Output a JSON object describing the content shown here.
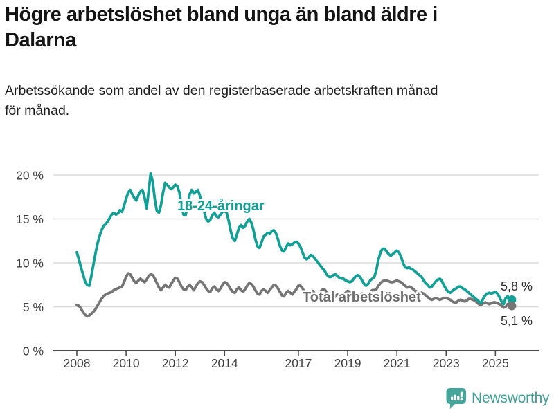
{
  "header": {
    "title_lines": [
      "Högre arbetslöshet bland unga än bland äldre i",
      "Dalarna"
    ],
    "subtitle_lines": [
      "Arbetssökande som andel av den registerbaserade arbetskraften månad",
      "för månad."
    ]
  },
  "footer": {
    "brand": "Newsworthy"
  },
  "colors": {
    "youth_line": "#12a096",
    "total_line": "#757575",
    "total_label": "#6d6d6d",
    "brand_teal": "#46a59b",
    "grid": "#dbdbdb",
    "axis": "#4b4b4b"
  },
  "chart_data": {
    "type": "line",
    "title": "Högre arbetslöshet bland unga än bland äldre i Dalarna",
    "subtitle": "Arbetssökande som andel av den registerbaserade arbetskraften månad för månad.",
    "unit": "%",
    "frequency": "monthly",
    "x_start": "2008-01",
    "x_end": "2025-09",
    "x_ticks": [
      2008,
      2010,
      2012,
      2014,
      2017,
      2019,
      2021,
      2023,
      2025
    ],
    "y_ticks": [
      0,
      5,
      10,
      15,
      20
    ],
    "y_tick_suffix": " %",
    "ylim": [
      0,
      21.7
    ],
    "grid": true,
    "legend": "inline-labels",
    "series": [
      {
        "name": "18-24-åringar",
        "color": "#12a096",
        "end_label": "5,8 %",
        "end_value": 5.8,
        "values": [
          11.2,
          10.4,
          9.5,
          8.7,
          7.9,
          7.5,
          7.4,
          8.4,
          9.7,
          11.0,
          12.1,
          13.0,
          13.7,
          14.2,
          14.4,
          14.7,
          15.1,
          15.5,
          15.7,
          15.5,
          15.6,
          16.0,
          15.8,
          16.5,
          17.3,
          18.0,
          18.3,
          17.8,
          17.4,
          17.1,
          17.7,
          18.1,
          18.3,
          17.4,
          16.2,
          18.2,
          20.2,
          19.2,
          17.2,
          15.9,
          15.7,
          16.6,
          18.0,
          19.1,
          18.9,
          18.6,
          18.4,
          18.6,
          18.9,
          18.7,
          18.0,
          16.5,
          15.5,
          15.4,
          16.5,
          17.8,
          18.3,
          17.9,
          18.1,
          18.3,
          17.6,
          17.0,
          15.9,
          15.0,
          14.7,
          14.9,
          15.4,
          15.7,
          15.3,
          15.2,
          15.5,
          15.8,
          15.9,
          15.7,
          14.8,
          13.6,
          12.8,
          12.5,
          13.2,
          14.0,
          14.3,
          14.0,
          14.2,
          14.7,
          15.0,
          14.6,
          13.8,
          12.7,
          11.9,
          11.7,
          12.3,
          13.0,
          13.2,
          13.4,
          13.3,
          13.6,
          13.7,
          13.4,
          12.7,
          11.9,
          11.4,
          11.3,
          11.8,
          12.2,
          12.0,
          12.1,
          12.3,
          12.4,
          12.2,
          11.8,
          11.2,
          10.6,
          10.4,
          10.6,
          10.9,
          10.8,
          10.5,
          10.2,
          9.9,
          9.6,
          9.3,
          9.0,
          8.6,
          8.4,
          8.4,
          8.6,
          8.7,
          8.5,
          8.3,
          8.2,
          8.2,
          8.0,
          7.9,
          7.8,
          7.9,
          8.2,
          8.5,
          8.6,
          8.4,
          8.0,
          7.6,
          7.4,
          7.6,
          8.0,
          8.2,
          8.4,
          9.2,
          10.4,
          11.2,
          11.6,
          11.6,
          11.3,
          11.0,
          10.8,
          11.0,
          11.2,
          11.4,
          11.2,
          10.7,
          10.0,
          9.5,
          9.4,
          9.5,
          9.3,
          9.2,
          9.0,
          8.8,
          8.6,
          8.4,
          8.0,
          7.7,
          7.5,
          7.2,
          7.3,
          7.6,
          7.9,
          8.1,
          8.2,
          7.9,
          7.4,
          7.0,
          6.7,
          6.6,
          6.8,
          7.0,
          7.1,
          7.3,
          7.3,
          7.1,
          7.0,
          6.8,
          6.6,
          6.4,
          6.2,
          6.0,
          5.8,
          5.6,
          5.4,
          5.9,
          6.3,
          6.5,
          6.6,
          6.5,
          6.6,
          6.7,
          6.5,
          6.1,
          5.6,
          5.3,
          6.0,
          6.2,
          5.5,
          5.8
        ]
      },
      {
        "name": "Total arbetslöshet",
        "color": "#757575",
        "end_label": "5,1 %",
        "end_value": 5.1,
        "values": [
          5.2,
          5.1,
          4.8,
          4.4,
          4.1,
          3.9,
          4.0,
          4.2,
          4.4,
          4.7,
          5.1,
          5.5,
          5.9,
          6.2,
          6.4,
          6.5,
          6.6,
          6.7,
          6.9,
          7.0,
          7.1,
          7.2,
          7.3,
          7.8,
          8.4,
          8.8,
          8.7,
          8.3,
          7.9,
          7.7,
          8.0,
          8.2,
          8.0,
          7.8,
          8.1,
          8.5,
          8.7,
          8.6,
          8.2,
          7.7,
          7.2,
          6.9,
          7.2,
          7.5,
          7.3,
          7.2,
          7.6,
          8.0,
          8.3,
          8.2,
          7.8,
          7.3,
          7.0,
          6.9,
          7.3,
          7.5,
          7.2,
          6.9,
          7.3,
          7.7,
          7.9,
          7.8,
          7.5,
          7.1,
          6.8,
          6.7,
          7.1,
          7.3,
          7.0,
          6.8,
          7.1,
          7.5,
          7.8,
          7.7,
          7.4,
          7.0,
          6.7,
          6.6,
          7.0,
          7.2,
          6.9,
          6.7,
          7.0,
          7.4,
          7.7,
          7.6,
          7.3,
          6.9,
          6.5,
          6.4,
          6.8,
          7.0,
          6.8,
          6.6,
          6.9,
          7.2,
          7.5,
          7.4,
          7.1,
          6.7,
          6.3,
          6.2,
          6.6,
          6.8,
          6.6,
          6.4,
          6.7,
          7.0,
          7.4,
          7.4,
          7.1,
          6.7,
          6.4,
          6.3,
          6.6,
          6.8,
          6.5,
          6.3,
          6.5,
          6.8,
          7.0,
          6.9,
          6.6,
          6.3,
          6.0,
          5.9,
          6.2,
          6.4,
          6.2,
          6.1,
          6.3,
          6.6,
          6.8,
          6.7,
          6.5,
          6.2,
          6.0,
          6.0,
          6.3,
          6.5,
          6.3,
          6.2,
          6.4,
          6.7,
          6.9,
          6.9,
          7.0,
          7.4,
          7.7,
          7.9,
          8.0,
          8.0,
          7.9,
          7.8,
          7.8,
          7.9,
          8.0,
          7.9,
          7.8,
          7.6,
          7.4,
          7.2,
          7.3,
          7.2,
          7.0,
          6.8,
          6.7,
          6.7,
          6.6,
          6.5,
          6.3,
          6.1,
          5.9,
          5.8,
          5.9,
          6.0,
          5.9,
          5.8,
          5.9,
          6.0,
          6.0,
          5.9,
          5.8,
          5.6,
          5.5,
          5.5,
          5.7,
          5.8,
          5.7,
          5.6,
          5.7,
          5.9,
          5.9,
          5.8,
          5.7,
          5.5,
          5.3,
          5.2,
          5.4,
          5.5,
          5.4,
          5.3,
          5.4,
          5.5,
          5.5,
          5.4,
          5.3,
          5.1,
          4.9,
          5.0,
          5.3,
          5.2,
          5.1
        ]
      }
    ]
  }
}
